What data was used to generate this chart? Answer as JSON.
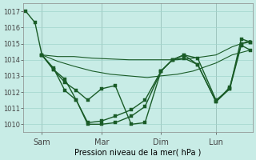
{
  "background_color": "#c8ece6",
  "grid_color": "#a0d4cc",
  "line_color": "#1a5c28",
  "xlabel": "Pression niveau de la mer( hPa )",
  "ylim": [
    1009.5,
    1017.5
  ],
  "yticks": [
    1010,
    1011,
    1012,
    1013,
    1014,
    1015,
    1016,
    1017
  ],
  "xtick_labels": [
    "Sam",
    "Mar",
    "Dim",
    "Lun"
  ],
  "xtick_positions": [
    8,
    34,
    60,
    84
  ],
  "xlim": [
    0,
    100
  ],
  "series": [
    {
      "x": [
        1,
        5,
        8,
        13,
        18,
        23,
        28,
        34,
        40,
        47,
        53,
        60,
        65,
        70,
        76,
        84,
        90,
        95,
        99
      ],
      "y": [
        1017.0,
        1016.3,
        1014.3,
        1013.4,
        1012.6,
        1012.1,
        1011.5,
        1012.2,
        1012.4,
        1010.0,
        1010.1,
        1013.3,
        1014.0,
        1014.1,
        1013.7,
        1011.4,
        1012.3,
        1015.0,
        1015.1
      ],
      "linewidth": 1.0,
      "marker": "s",
      "markersize": 2.5
    },
    {
      "x": [
        8,
        15,
        22,
        30,
        38,
        46,
        54,
        60,
        67,
        74,
        84,
        91,
        99
      ],
      "y": [
        1014.3,
        1014.2,
        1014.2,
        1014.1,
        1014.05,
        1014.0,
        1014.0,
        1014.0,
        1014.0,
        1014.1,
        1014.3,
        1014.8,
        1015.2
      ],
      "linewidth": 0.8,
      "marker": null,
      "markersize": 0
    },
    {
      "x": [
        8,
        15,
        22,
        30,
        38,
        46,
        54,
        60,
        67,
        74,
        84,
        91,
        99
      ],
      "y": [
        1014.3,
        1013.9,
        1013.6,
        1013.3,
        1013.1,
        1013.0,
        1012.9,
        1013.0,
        1013.1,
        1013.3,
        1013.8,
        1014.3,
        1014.6
      ],
      "linewidth": 0.8,
      "marker": null,
      "markersize": 0
    },
    {
      "x": [
        8,
        13,
        18,
        23,
        28,
        34,
        40,
        47,
        53,
        60,
        65,
        70,
        76,
        84,
        90,
        95,
        99
      ],
      "y": [
        1014.3,
        1013.4,
        1012.8,
        1011.5,
        1010.0,
        1010.0,
        1010.1,
        1010.5,
        1011.1,
        1013.3,
        1014.0,
        1014.3,
        1013.7,
        1011.4,
        1012.2,
        1015.3,
        1015.1
      ],
      "linewidth": 1.0,
      "marker": "s",
      "markersize": 2.5
    },
    {
      "x": [
        8,
        13,
        18,
        23,
        28,
        34,
        40,
        47,
        53,
        60,
        65,
        70,
        76,
        84,
        90,
        95,
        99
      ],
      "y": [
        1014.3,
        1013.5,
        1012.1,
        1011.5,
        1010.1,
        1010.2,
        1010.5,
        1010.9,
        1011.5,
        1013.3,
        1014.0,
        1014.3,
        1014.1,
        1011.5,
        1012.2,
        1014.9,
        1014.6
      ],
      "linewidth": 1.0,
      "marker": "s",
      "markersize": 2.5
    }
  ]
}
